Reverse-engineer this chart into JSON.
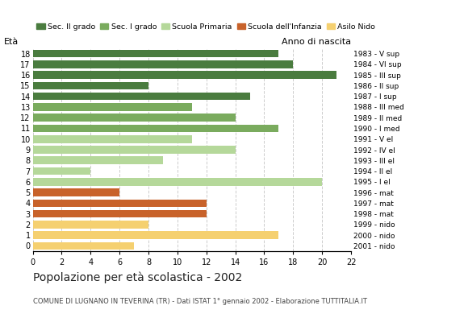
{
  "ages": [
    18,
    17,
    16,
    15,
    14,
    13,
    12,
    11,
    10,
    9,
    8,
    7,
    6,
    5,
    4,
    3,
    2,
    1,
    0
  ],
  "years": [
    "1983 - V sup",
    "1984 - VI sup",
    "1985 - III sup",
    "1986 - II sup",
    "1987 - I sup",
    "1988 - III med",
    "1989 - II med",
    "1990 - I med",
    "1991 - V el",
    "1992 - IV el",
    "1993 - III el",
    "1994 - II el",
    "1995 - I el",
    "1996 - mat",
    "1997 - mat",
    "1998 - mat",
    "1999 - nido",
    "2000 - nido",
    "2001 - nido"
  ],
  "values": [
    17,
    18,
    21,
    8,
    15,
    11,
    14,
    17,
    11,
    14,
    9,
    4,
    20,
    6,
    12,
    12,
    8,
    17,
    7
  ],
  "categories": [
    "Sec. II grado",
    "Sec. II grado",
    "Sec. II grado",
    "Sec. II grado",
    "Sec. II grado",
    "Sec. I grado",
    "Sec. I grado",
    "Sec. I grado",
    "Scuola Primaria",
    "Scuola Primaria",
    "Scuola Primaria",
    "Scuola Primaria",
    "Scuola Primaria",
    "Scuola dell'Infanzia",
    "Scuola dell'Infanzia",
    "Scuola dell'Infanzia",
    "Asilo Nido",
    "Asilo Nido",
    "Asilo Nido"
  ],
  "colors": {
    "Sec. II grado": "#4a7c3f",
    "Sec. I grado": "#7aab5e",
    "Scuola Primaria": "#b5d89a",
    "Scuola dell'Infanzia": "#c8622a",
    "Asilo Nido": "#f5d070"
  },
  "legend_order": [
    "Sec. II grado",
    "Sec. I grado",
    "Scuola Primaria",
    "Scuola dell'Infanzia",
    "Asilo Nido"
  ],
  "title": "Popolazione per età scolastica - 2002",
  "subtitle": "COMUNE DI LUGNANO IN TEVERINA (TR) - Dati ISTAT 1° gennaio 2002 - Elaborazione TUTTITALIA.IT",
  "label_eta": "Età",
  "label_anno": "Anno di nascita",
  "xlim": [
    0,
    22
  ],
  "xticks": [
    0,
    2,
    4,
    6,
    8,
    10,
    12,
    14,
    16,
    18,
    20,
    22
  ],
  "background_color": "#ffffff",
  "grid_color": "#cccccc"
}
